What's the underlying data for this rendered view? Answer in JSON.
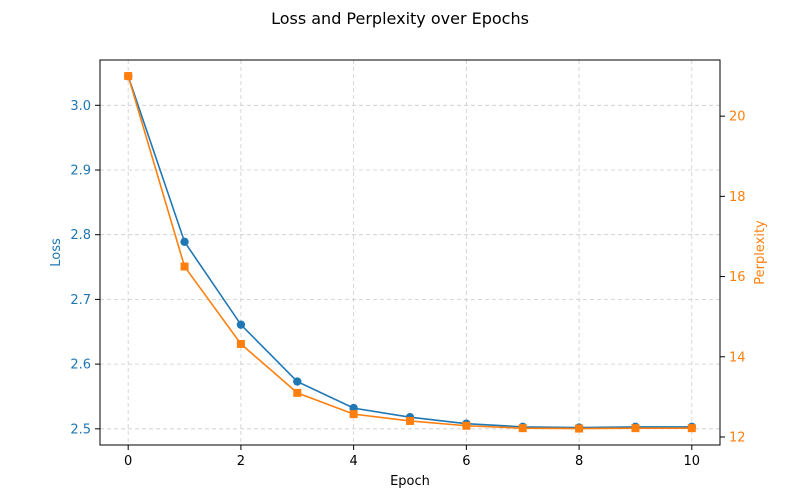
{
  "chart_data": {
    "type": "line",
    "title": "Loss and Perplexity over Epochs",
    "xlabel": "Epoch",
    "x": [
      0,
      1,
      2,
      3,
      4,
      5,
      6,
      7,
      8,
      9,
      10
    ],
    "xlim": [
      -0.5,
      10.5
    ],
    "xticks": [
      0,
      2,
      4,
      6,
      8,
      10
    ],
    "grid": true,
    "left_axis": {
      "label": "Loss",
      "color": "#1f77b4",
      "ylim": [
        2.475,
        3.07
      ],
      "ticks": [
        2.5,
        2.6,
        2.7,
        2.8,
        2.9,
        3.0
      ],
      "tick_labels": [
        "2.5",
        "2.6",
        "2.7",
        "2.8",
        "2.9",
        "3.0"
      ]
    },
    "right_axis": {
      "label": "Perplexity",
      "color": "#ff7f0e",
      "ylim": [
        11.8,
        21.4
      ],
      "ticks": [
        12,
        14,
        16,
        18,
        20
      ],
      "tick_labels": [
        "12",
        "14",
        "16",
        "18",
        "20"
      ]
    },
    "series": [
      {
        "axis": "left",
        "marker": "circle",
        "color": "#1f77b4",
        "values": [
          3.045,
          2.789,
          2.661,
          2.573,
          2.532,
          2.518,
          2.508,
          2.503,
          2.502,
          2.503,
          2.503
        ]
      },
      {
        "axis": "right",
        "marker": "square",
        "color": "#ff7f0e",
        "values": [
          21.0,
          16.25,
          14.32,
          13.1,
          12.57,
          12.4,
          12.28,
          12.22,
          12.21,
          12.22,
          12.22
        ]
      }
    ]
  }
}
